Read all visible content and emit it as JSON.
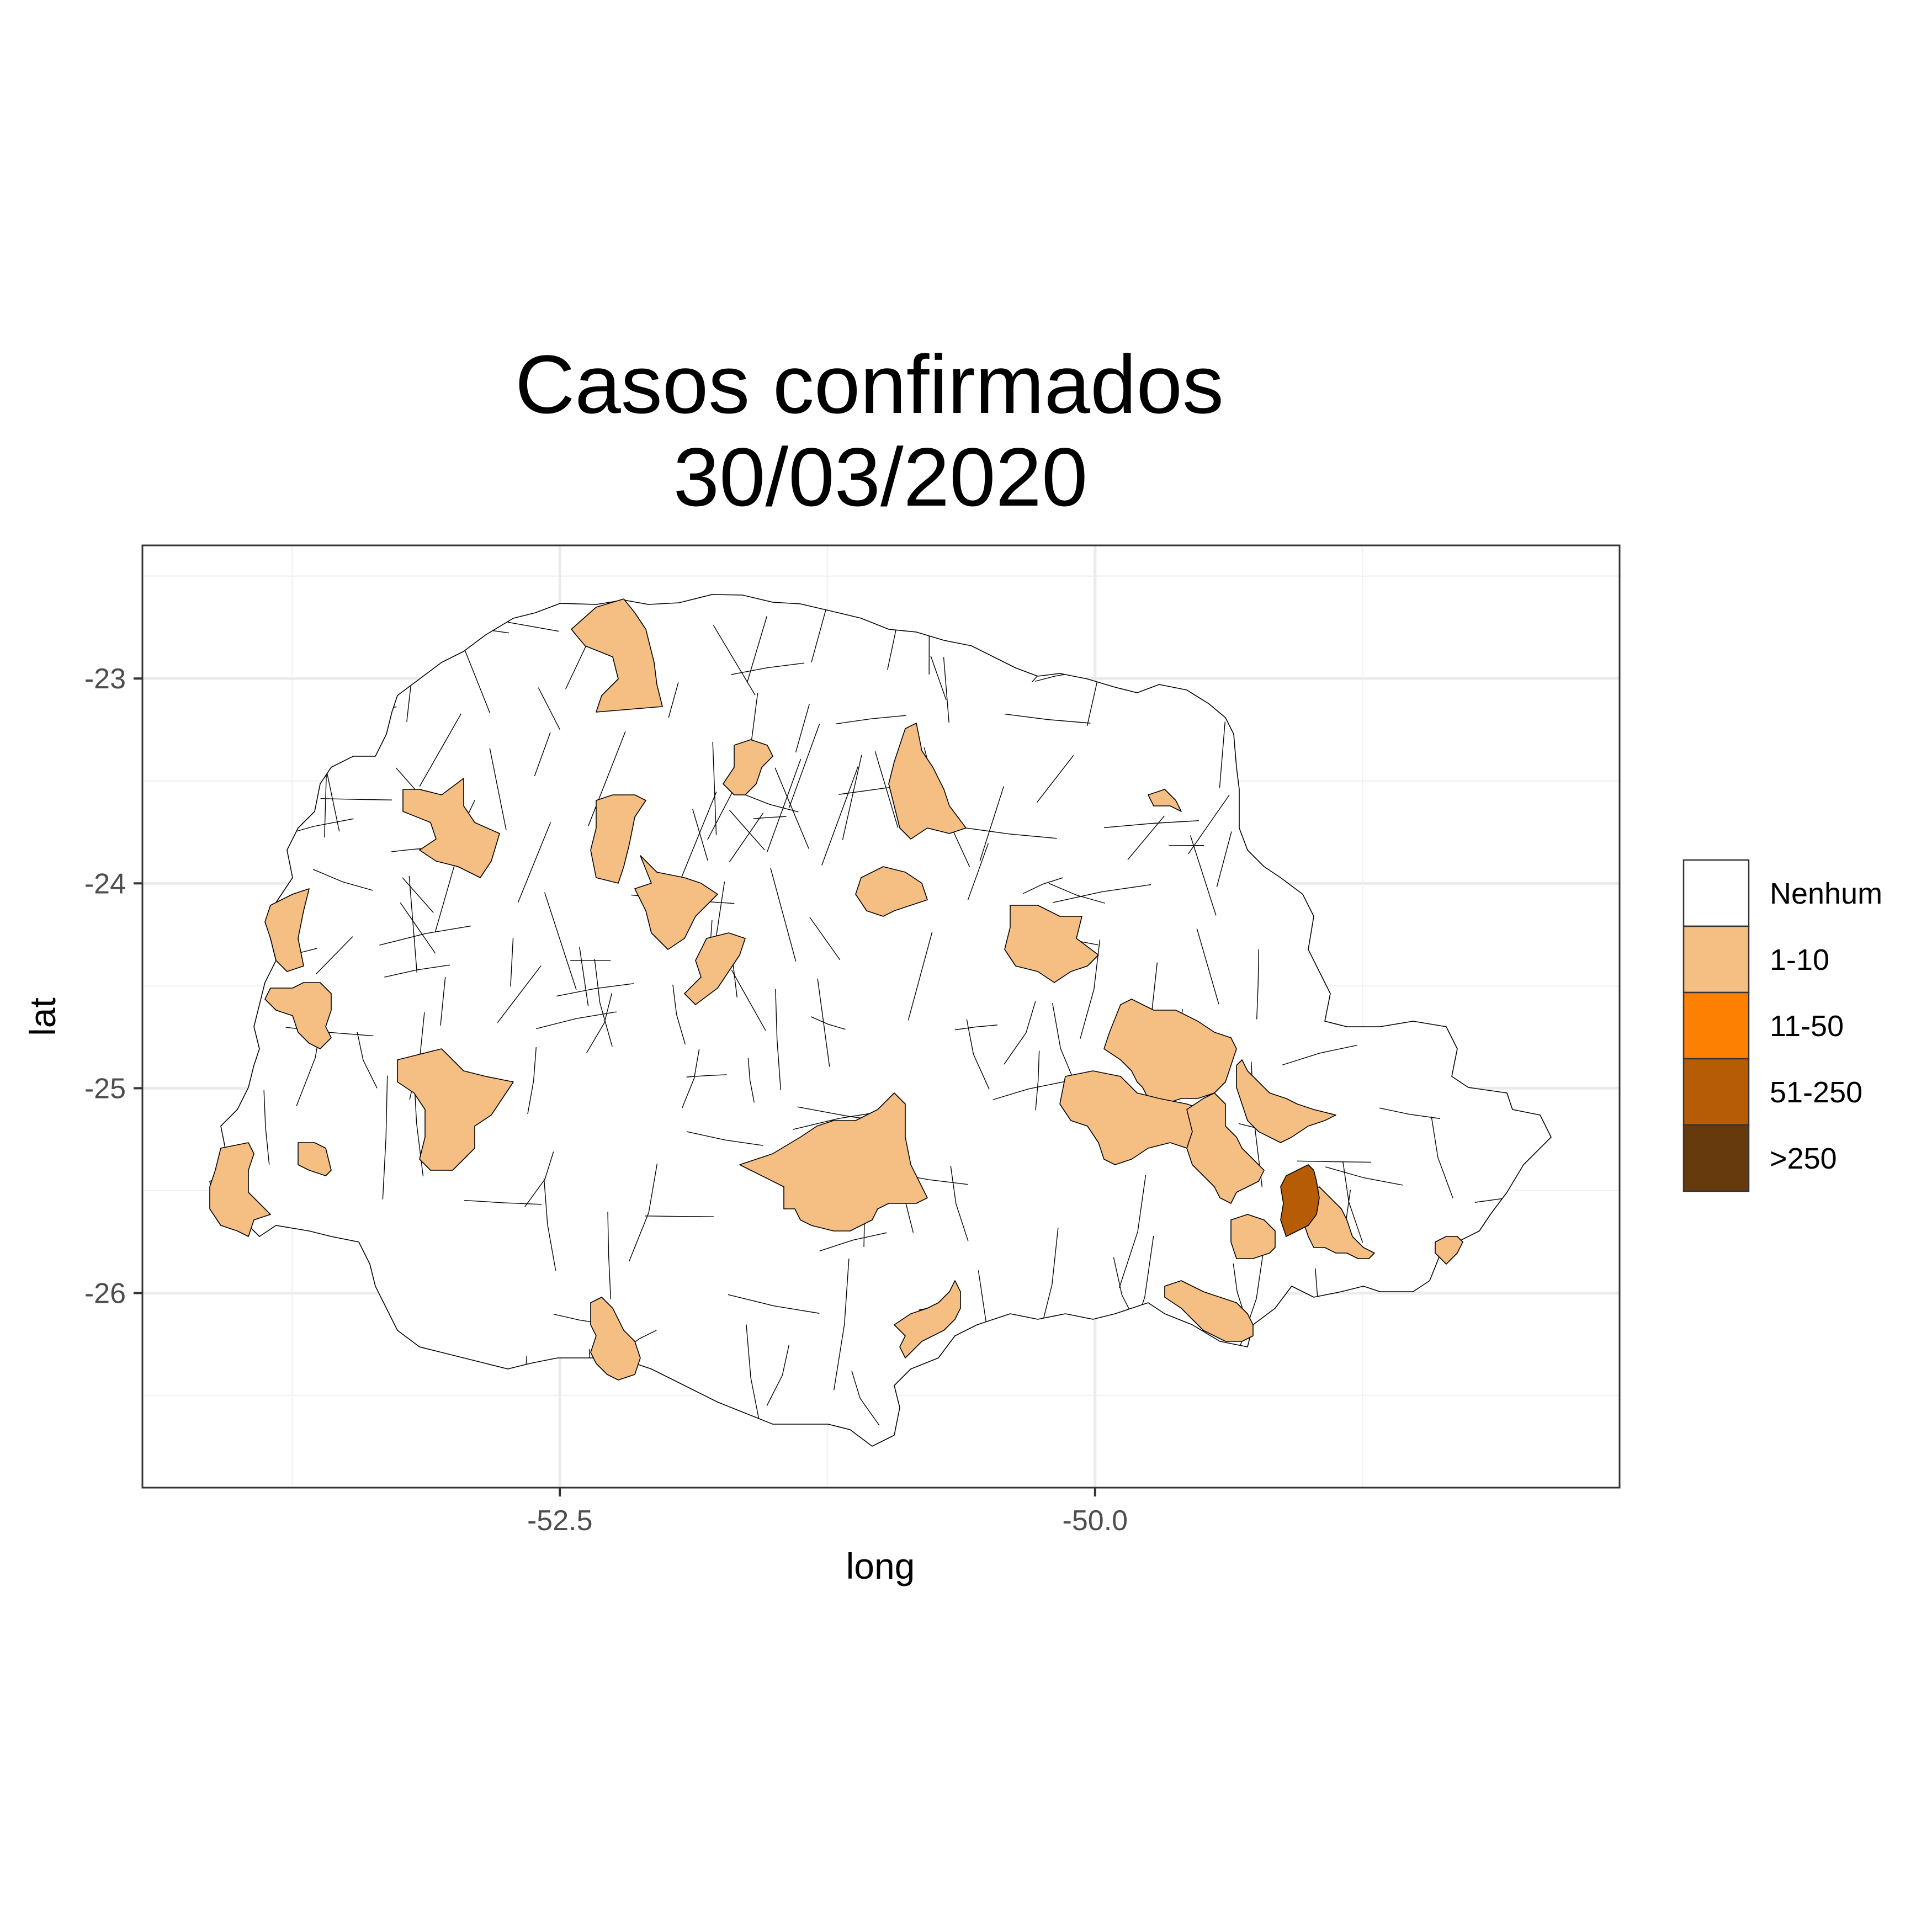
{
  "title": {
    "line1": "Casos confirmados",
    "line2": "30/03/2020"
  },
  "axes": {
    "x": {
      "label": "long",
      "range": [
        -54.45,
        -47.55
      ],
      "ticks": [
        -52.5,
        -50.0
      ],
      "tick_labels": [
        "-52.5",
        "-50.0"
      ],
      "minor": [
        -53.75,
        -51.25,
        -48.75
      ]
    },
    "y": {
      "label": "lat",
      "range": [
        -26.95,
        -22.35
      ],
      "ticks": [
        -23,
        -24,
        -25,
        -26
      ],
      "tick_labels": [
        "-23",
        "-24",
        "-25",
        "-26"
      ],
      "minor": [
        -22.5,
        -23.5,
        -24.5,
        -25.5,
        -26.5
      ]
    },
    "grid": true
  },
  "legend": {
    "placement": "right",
    "items": [
      {
        "label": "Nenhum",
        "color": "#ffffff"
      },
      {
        "label": "1-10",
        "color": "#f5be83"
      },
      {
        "label": "11-50",
        "color": "#fe8002"
      },
      {
        "label": "51-250",
        "color": "#b65c04"
      },
      {
        "label": ">250",
        "color": "#663a0c"
      }
    ]
  },
  "chart_data": {
    "type": "choropleth",
    "region": "Paraná municipalities",
    "categories": [
      "Nenhum",
      "1-10",
      "11-50",
      "51-250",
      ">250"
    ],
    "municipalities": [
      {
        "lon": -51.8,
        "lat": -23.0,
        "category": "Nenhum"
      },
      {
        "lon": -50.6,
        "lat": -24.3,
        "category": "Nenhum"
      },
      {
        "lon": -51.6,
        "lat": -26.3,
        "category": "Nenhum"
      },
      {
        "lon": -52.7,
        "lat": -22.9,
        "category": "1-10"
      },
      {
        "lon": -53.2,
        "lat": -23.7,
        "category": "1-10"
      },
      {
        "lon": -52.6,
        "lat": -23.9,
        "category": "1-10"
      },
      {
        "lon": -52.35,
        "lat": -24.1,
        "category": "1-10"
      },
      {
        "lon": -52.05,
        "lat": -24.4,
        "category": "1-10"
      },
      {
        "lon": -51.92,
        "lat": -23.4,
        "category": "1-10"
      },
      {
        "lon": -51.3,
        "lat": -23.6,
        "category": "1-10"
      },
      {
        "lon": -51.4,
        "lat": -24.0,
        "category": "1-10"
      },
      {
        "lon": -50.9,
        "lat": -24.25,
        "category": "1-10"
      },
      {
        "lon": -49.95,
        "lat": -23.55,
        "category": "1-10"
      },
      {
        "lon": -54.0,
        "lat": -24.2,
        "category": "1-10"
      },
      {
        "lon": -53.85,
        "lat": -24.6,
        "category": "1-10"
      },
      {
        "lon": -53.2,
        "lat": -25.05,
        "category": "1-10"
      },
      {
        "lon": -53.7,
        "lat": -25.3,
        "category": "1-10"
      },
      {
        "lon": -54.2,
        "lat": -25.5,
        "category": "1-10"
      },
      {
        "lon": -51.6,
        "lat": -25.4,
        "category": "1-10"
      },
      {
        "lon": -50.3,
        "lat": -25.1,
        "category": "1-10"
      },
      {
        "lon": -49.8,
        "lat": -24.85,
        "category": "1-10"
      },
      {
        "lon": -49.65,
        "lat": -25.3,
        "category": "1-10"
      },
      {
        "lon": -49.4,
        "lat": -25.1,
        "category": "1-10"
      },
      {
        "lon": -49.3,
        "lat": -25.65,
        "category": "1-10"
      },
      {
        "lon": -49.55,
        "lat": -25.75,
        "category": "1-10"
      },
      {
        "lon": -49.65,
        "lat": -26.05,
        "category": "1-10"
      },
      {
        "lon": -50.95,
        "lat": -26.1,
        "category": "1-10"
      },
      {
        "lon": -52.6,
        "lat": -26.2,
        "category": "1-10"
      },
      {
        "lon": -48.5,
        "lat": -25.75,
        "category": "1-10"
      },
      {
        "lon": -49.27,
        "lat": -25.5,
        "category": "51-250"
      }
    ]
  }
}
